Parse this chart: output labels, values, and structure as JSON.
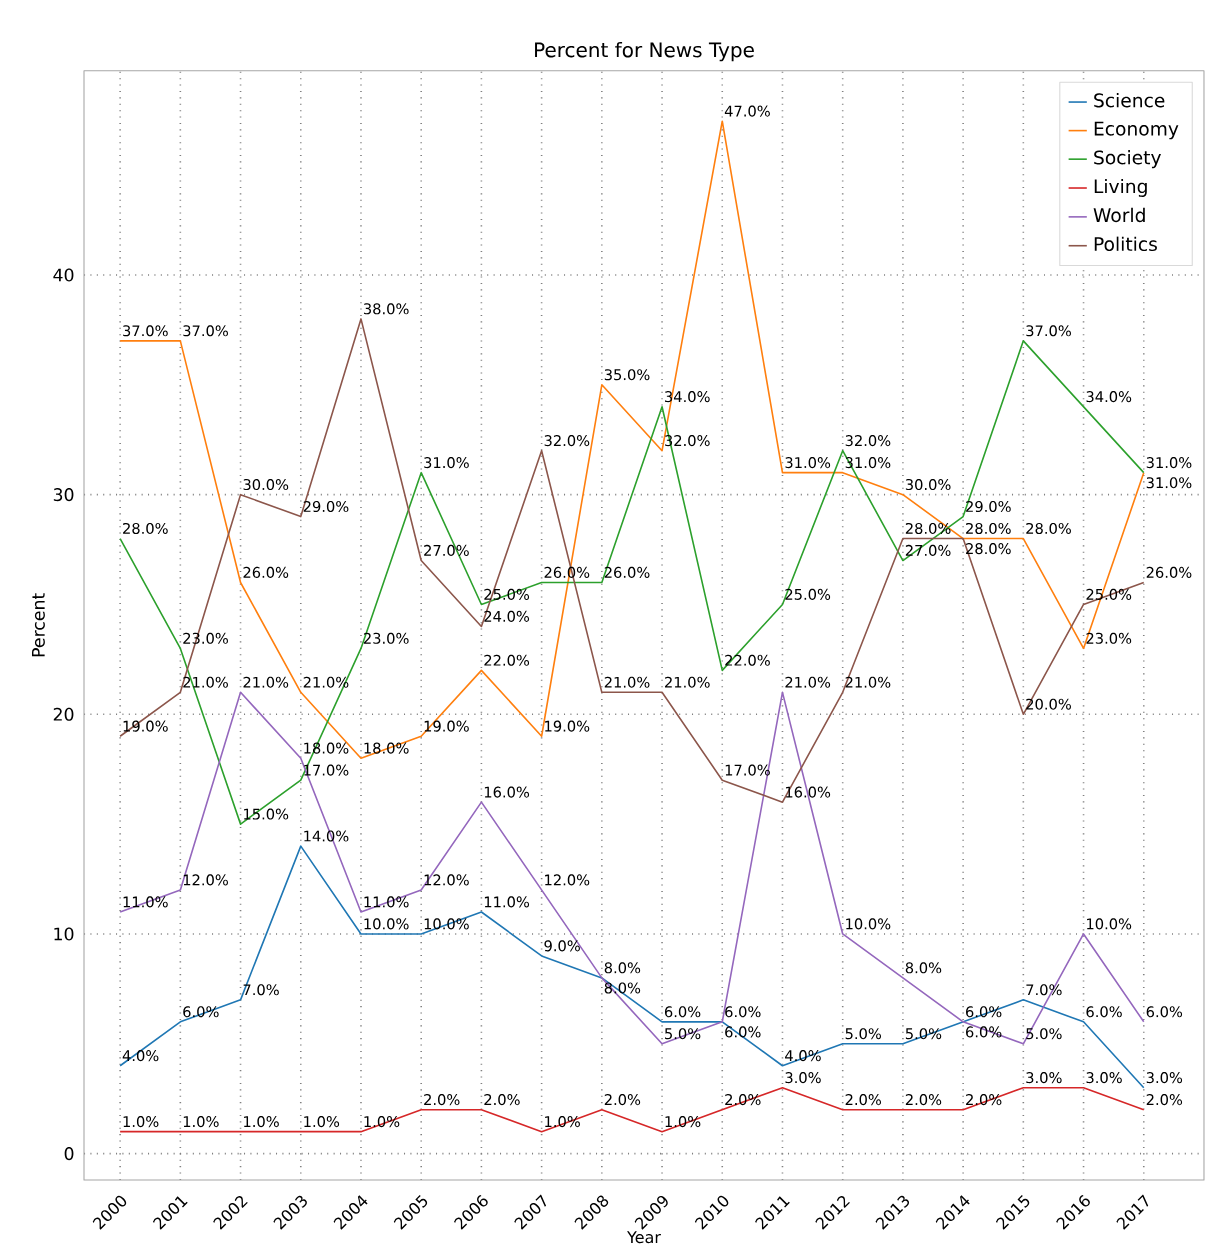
{
  "chart_data": {
    "type": "line",
    "title": "Percent for News Type",
    "xlabel": "Year",
    "ylabel": "Percent",
    "categories": [
      "2000",
      "2001",
      "2002",
      "2003",
      "2004",
      "2005",
      "2006",
      "2007",
      "2008",
      "2009",
      "2010",
      "2011",
      "2012",
      "2013",
      "2014",
      "2015",
      "2016",
      "2017"
    ],
    "ylim": [
      -1.2,
      49.3
    ],
    "yticks": [
      0,
      10,
      20,
      30,
      40
    ],
    "grid": true,
    "legend": "top right",
    "marker": "none",
    "line_style": "solid",
    "series": [
      {
        "name": "Science",
        "color": "#1f77b4",
        "values": [
          4,
          6,
          7,
          14,
          10,
          10,
          11,
          9,
          8,
          6,
          6,
          4,
          5,
          5,
          6,
          7,
          6,
          3
        ],
        "value_labels": [
          "4.0%",
          "6.0%",
          "7.0%",
          "14.0%",
          "10.0%",
          "10.0%",
          "11.0%",
          "9.0%",
          "8.0%",
          "6.0%",
          "6.0%",
          "4.0%",
          "5.0%",
          "5.0%",
          "6.0%",
          "7.0%",
          "6.0%",
          "3.0%"
        ]
      },
      {
        "name": "Economy",
        "color": "#ff7f0e",
        "values": [
          37,
          37,
          26,
          21,
          18,
          19,
          22,
          19,
          35,
          32,
          47,
          31,
          31,
          30,
          28,
          28,
          23,
          31
        ],
        "value_labels": [
          "37.0%",
          "37.0%",
          "26.0%",
          "21.0%",
          "18.0%",
          "19.0%",
          "22.0%",
          "19.0%",
          "35.0%",
          "32.0%",
          "47.0%",
          "31.0%",
          "31.0%",
          "30.0%",
          "28.0%",
          "28.0%",
          "23.0%",
          "31.0%"
        ]
      },
      {
        "name": "Society",
        "color": "#2ca02c",
        "values": [
          28,
          23,
          15,
          17,
          23,
          31,
          25,
          26,
          26,
          34,
          22,
          25,
          32,
          27,
          29,
          37,
          34,
          31
        ],
        "value_labels": [
          "28.0%",
          "23.0%",
          "15.0%",
          "17.0%",
          "23.0%",
          "31.0%",
          "25.0%",
          "26.0%",
          "26.0%",
          "34.0%",
          "22.0%",
          "25.0%",
          "32.0%",
          "27.0%",
          "29.0%",
          "37.0%",
          "34.0%",
          "31.0%"
        ]
      },
      {
        "name": "Living",
        "color": "#d62728",
        "values": [
          1,
          1,
          1,
          1,
          1,
          2,
          2,
          1,
          2,
          1,
          2,
          3,
          2,
          2,
          2,
          3,
          3,
          2
        ],
        "value_labels": [
          "1.0%",
          "1.0%",
          "1.0%",
          "1.0%",
          "1.0%",
          "2.0%",
          "2.0%",
          "1.0%",
          "2.0%",
          "1.0%",
          "2.0%",
          "3.0%",
          "2.0%",
          "2.0%",
          "2.0%",
          "3.0%",
          "3.0%",
          "2.0%"
        ]
      },
      {
        "name": "World",
        "color": "#9467bd",
        "values": [
          11,
          12,
          21,
          18,
          11,
          12,
          16,
          12,
          8,
          5,
          6,
          21,
          10,
          8,
          6,
          5,
          10,
          6
        ],
        "value_labels": [
          "11.0%",
          "12.0%",
          "21.0%",
          "18.0%",
          "11.0%",
          "12.0%",
          "16.0%",
          "12.0%",
          "8.0%",
          "5.0%",
          "6.0%",
          "21.0%",
          "10.0%",
          "8.0%",
          "6.0%",
          "5.0%",
          "10.0%",
          "6.0%"
        ]
      },
      {
        "name": "Politics",
        "color": "#8c564b",
        "values": [
          19,
          21,
          30,
          29,
          38,
          27,
          24,
          32,
          21,
          21,
          17,
          16,
          21,
          28,
          28,
          20,
          25,
          26
        ],
        "value_labels": [
          "19.0%",
          "21.0%",
          "30.0%",
          "29.0%",
          "38.0%",
          "27.0%",
          "24.0%",
          "32.0%",
          "21.0%",
          "21.0%",
          "17.0%",
          "16.0%",
          "21.0%",
          "28.0%",
          "28.0%",
          "20.0%",
          "25.0%",
          "26.0%"
        ]
      }
    ]
  }
}
